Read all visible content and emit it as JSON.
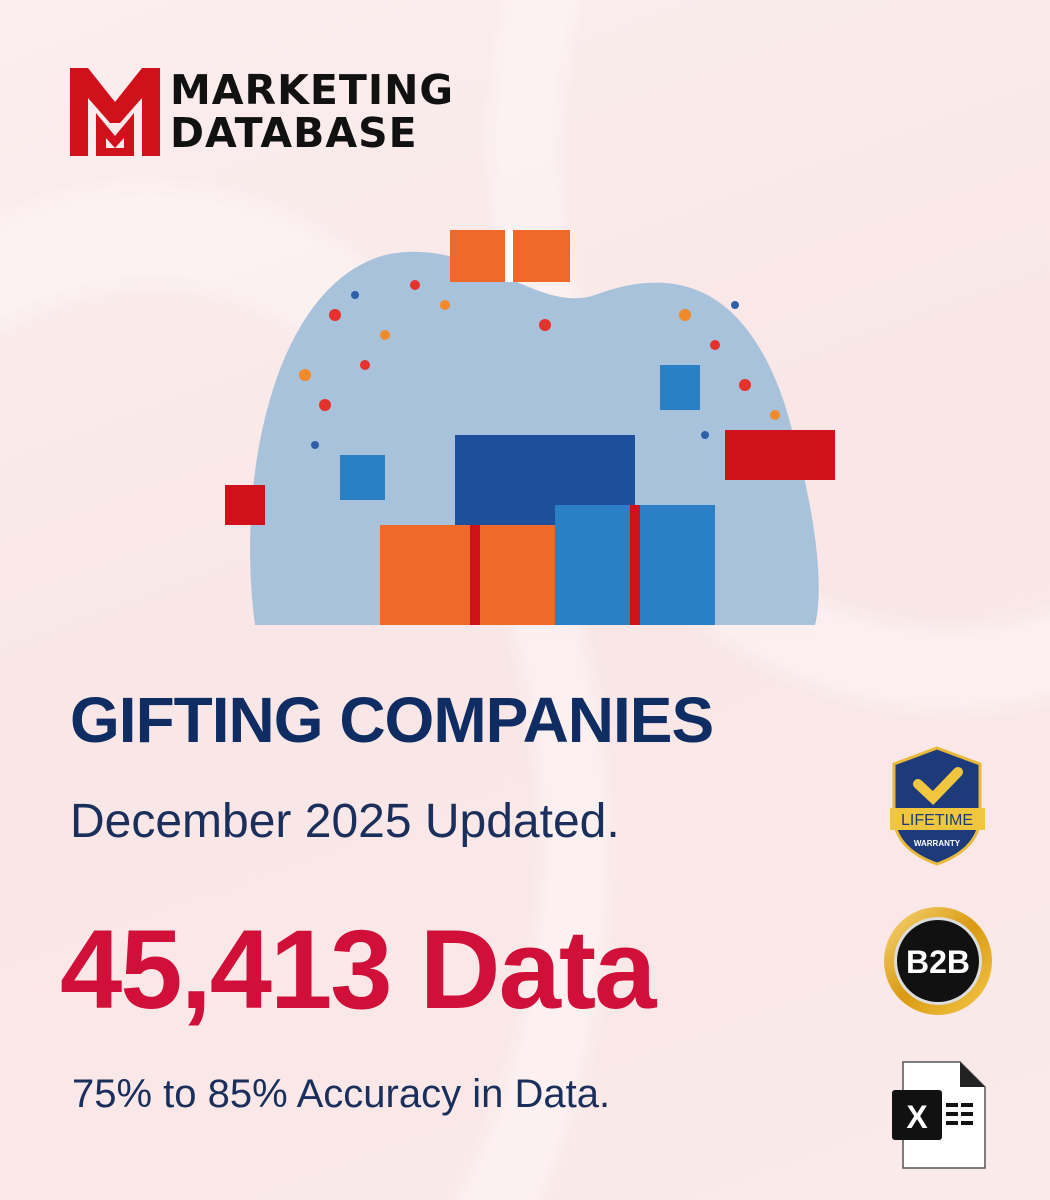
{
  "brand": {
    "logo_letters": "MD",
    "line1": "MARKETING",
    "line2": "DATABASE",
    "color": "#d0111b"
  },
  "headline": {
    "title": "GIFTING COMPANIES",
    "updated": "December 2025 Updated.",
    "count": "45,413 Data",
    "accuracy": "75% to 85% Accuracy in Data."
  },
  "badges": {
    "warranty": {
      "icon": "shield-check-icon",
      "label": "LIFETIME",
      "sub": "WARRANTY"
    },
    "b2b": {
      "icon": "b2b-coin-icon",
      "label": "B2B"
    },
    "excel": {
      "icon": "excel-file-icon",
      "label": "X"
    }
  },
  "colors": {
    "title": "#0f2d63",
    "count": "#d1103a",
    "text": "#1a2f5c"
  }
}
